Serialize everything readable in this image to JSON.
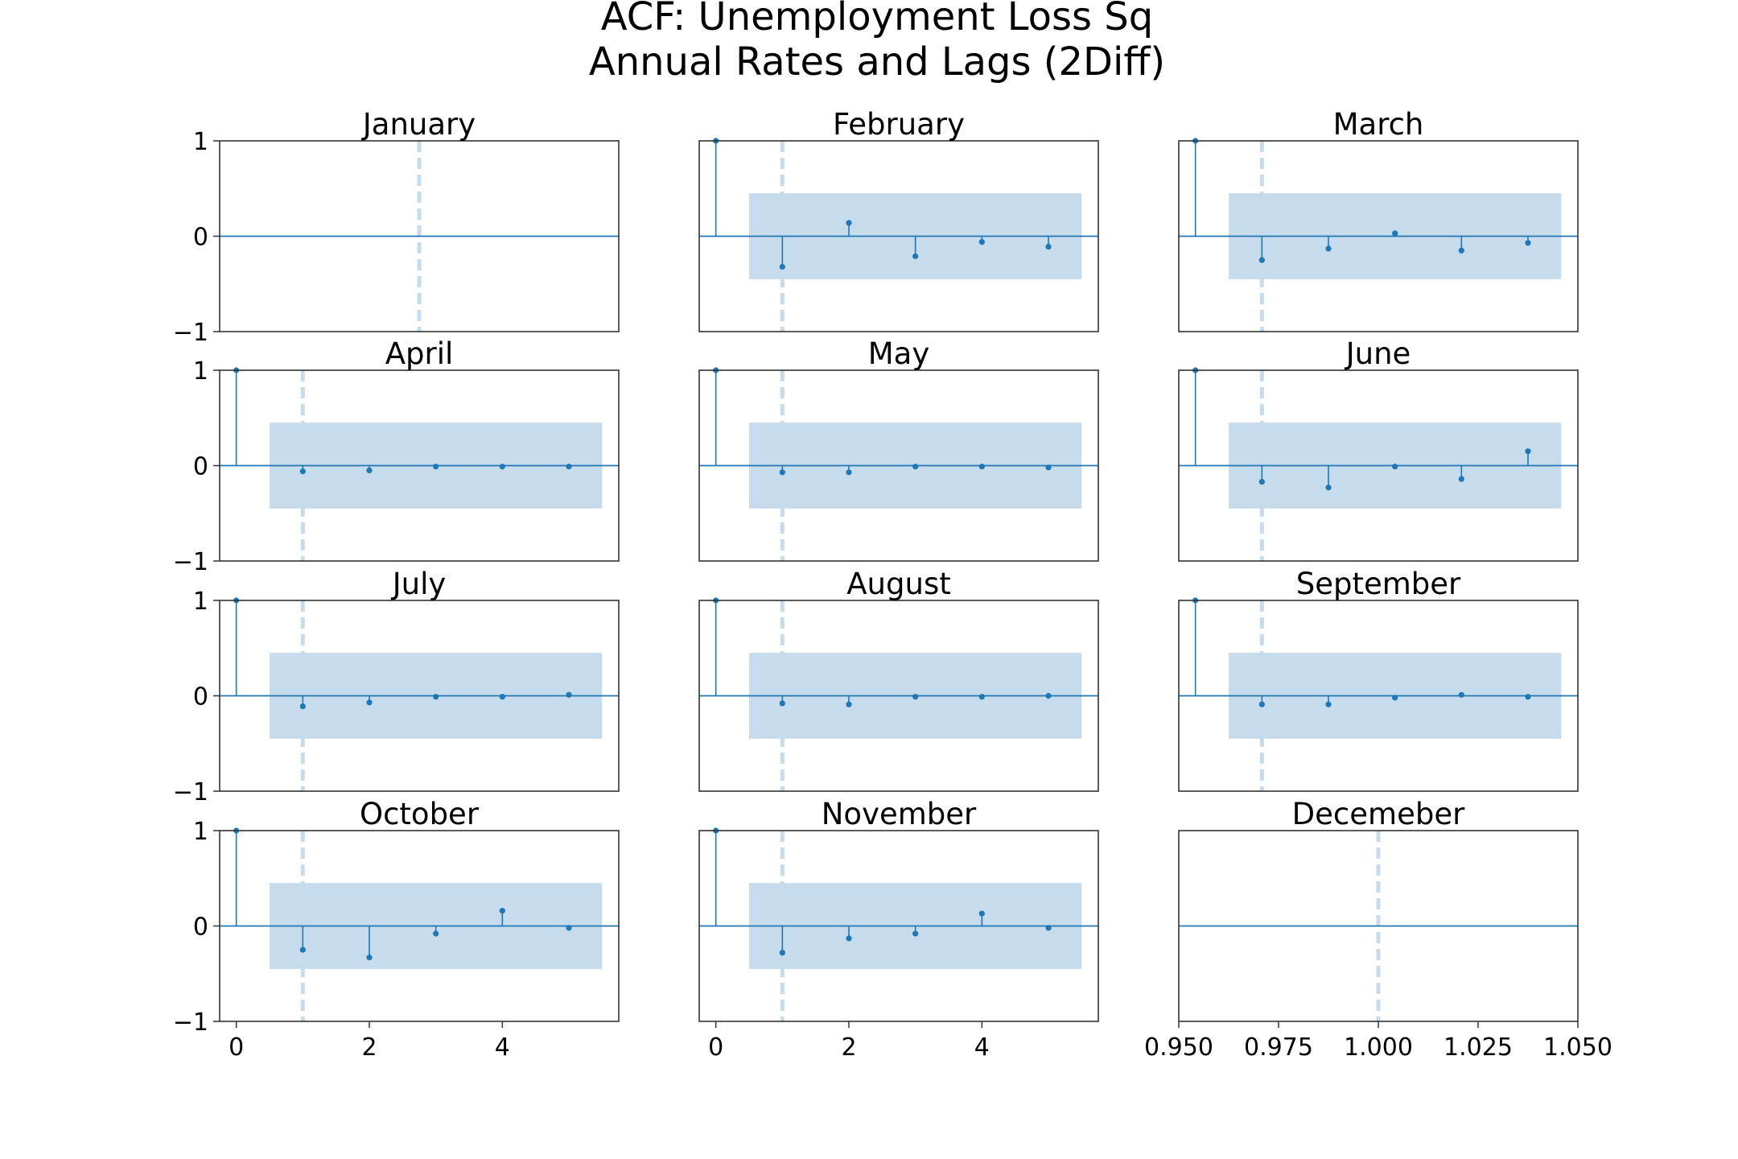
{
  "figure": {
    "title_line1": "ACF: Unemployment Loss Sq",
    "title_line2": "Annual Rates and Lags (2Diff)"
  },
  "colors": {
    "series": "#1f77b4",
    "confidence_band": "#c6dbec",
    "vline": "#c6dbec",
    "axis_frame": "#333333"
  },
  "chart_data": [
    {
      "type": "stem",
      "title": "January",
      "lags": [],
      "acf": [],
      "confidence": null,
      "vline_x": 2.75,
      "xlim": [
        -0.25,
        5.75
      ],
      "ylim": [
        -1,
        1
      ],
      "yticks": [
        1,
        0,
        -1
      ],
      "xticks": []
    },
    {
      "type": "stem",
      "title": "February",
      "lags": [
        0,
        1,
        2,
        3,
        4,
        5
      ],
      "acf": [
        1.0,
        -0.32,
        0.14,
        -0.21,
        -0.06,
        -0.11
      ],
      "confidence": 0.45,
      "vline_x": 1,
      "xlim": [
        -0.25,
        5.75
      ],
      "ylim": [
        -1,
        1
      ],
      "yticks": [],
      "xticks": []
    },
    {
      "type": "stem",
      "title": "March",
      "lags": [
        0,
        1,
        2,
        3,
        4,
        5
      ],
      "acf": [
        1.0,
        -0.25,
        -0.13,
        0.03,
        -0.15,
        -0.07
      ],
      "confidence": 0.45,
      "vline_x": 1,
      "xlim": [
        -0.25,
        5.75
      ],
      "ylim": [
        -1,
        1
      ],
      "yticks": [],
      "xticks": []
    },
    {
      "type": "stem",
      "title": "April",
      "lags": [
        0,
        1,
        2,
        3,
        4,
        5
      ],
      "acf": [
        1.0,
        -0.06,
        -0.05,
        -0.01,
        -0.01,
        -0.01
      ],
      "confidence": 0.45,
      "vline_x": 1,
      "xlim": [
        -0.25,
        5.75
      ],
      "ylim": [
        -1,
        1
      ],
      "yticks": [
        1,
        0,
        -1
      ],
      "xticks": []
    },
    {
      "type": "stem",
      "title": "May",
      "lags": [
        0,
        1,
        2,
        3,
        4,
        5
      ],
      "acf": [
        1.0,
        -0.07,
        -0.07,
        -0.01,
        -0.01,
        -0.02
      ],
      "confidence": 0.45,
      "vline_x": 1,
      "xlim": [
        -0.25,
        5.75
      ],
      "ylim": [
        -1,
        1
      ],
      "yticks": [],
      "xticks": []
    },
    {
      "type": "stem",
      "title": "June",
      "lags": [
        0,
        1,
        2,
        3,
        4,
        5
      ],
      "acf": [
        1.0,
        -0.17,
        -0.23,
        -0.01,
        -0.14,
        0.15
      ],
      "confidence": 0.45,
      "vline_x": 1,
      "xlim": [
        -0.25,
        5.75
      ],
      "ylim": [
        -1,
        1
      ],
      "yticks": [],
      "xticks": []
    },
    {
      "type": "stem",
      "title": "July",
      "lags": [
        0,
        1,
        2,
        3,
        4,
        5
      ],
      "acf": [
        1.0,
        -0.11,
        -0.07,
        -0.01,
        -0.01,
        0.01
      ],
      "confidence": 0.45,
      "vline_x": 1,
      "xlim": [
        -0.25,
        5.75
      ],
      "ylim": [
        -1,
        1
      ],
      "yticks": [
        1,
        0,
        -1
      ],
      "xticks": []
    },
    {
      "type": "stem",
      "title": "August",
      "lags": [
        0,
        1,
        2,
        3,
        4,
        5
      ],
      "acf": [
        1.0,
        -0.08,
        -0.09,
        -0.01,
        -0.01,
        0.0
      ],
      "confidence": 0.45,
      "vline_x": 1,
      "xlim": [
        -0.25,
        5.75
      ],
      "ylim": [
        -1,
        1
      ],
      "yticks": [],
      "xticks": []
    },
    {
      "type": "stem",
      "title": "September",
      "lags": [
        0,
        1,
        2,
        3,
        4,
        5
      ],
      "acf": [
        1.0,
        -0.09,
        -0.09,
        -0.02,
        0.01,
        -0.01
      ],
      "confidence": 0.45,
      "vline_x": 1,
      "xlim": [
        -0.25,
        5.75
      ],
      "ylim": [
        -1,
        1
      ],
      "yticks": [],
      "xticks": []
    },
    {
      "type": "stem",
      "title": "October",
      "lags": [
        0,
        1,
        2,
        3,
        4,
        5
      ],
      "acf": [
        1.0,
        -0.25,
        -0.33,
        -0.08,
        0.16,
        -0.02
      ],
      "confidence": 0.45,
      "vline_x": 1,
      "xlim": [
        -0.25,
        5.75
      ],
      "ylim": [
        -1,
        1
      ],
      "yticks": [
        1,
        0,
        -1
      ],
      "xticks": [
        0,
        2,
        4
      ]
    },
    {
      "type": "stem",
      "title": "November",
      "lags": [
        0,
        1,
        2,
        3,
        4,
        5
      ],
      "acf": [
        1.0,
        -0.28,
        -0.13,
        -0.08,
        0.13,
        -0.02
      ],
      "confidence": 0.45,
      "vline_x": 1,
      "xlim": [
        -0.25,
        5.75
      ],
      "ylim": [
        -1,
        1
      ],
      "yticks": [],
      "xticks": [
        0,
        2,
        4
      ]
    },
    {
      "type": "stem",
      "title": "Decemeber",
      "lags": [],
      "acf": [],
      "confidence": null,
      "vline_x": 1.0,
      "xlim": [
        0.95,
        1.05
      ],
      "ylim": [
        -1,
        1
      ],
      "yticks": [],
      "xticks": [
        "0.950",
        "0.975",
        "1.000",
        "1.025",
        "1.050"
      ]
    }
  ]
}
